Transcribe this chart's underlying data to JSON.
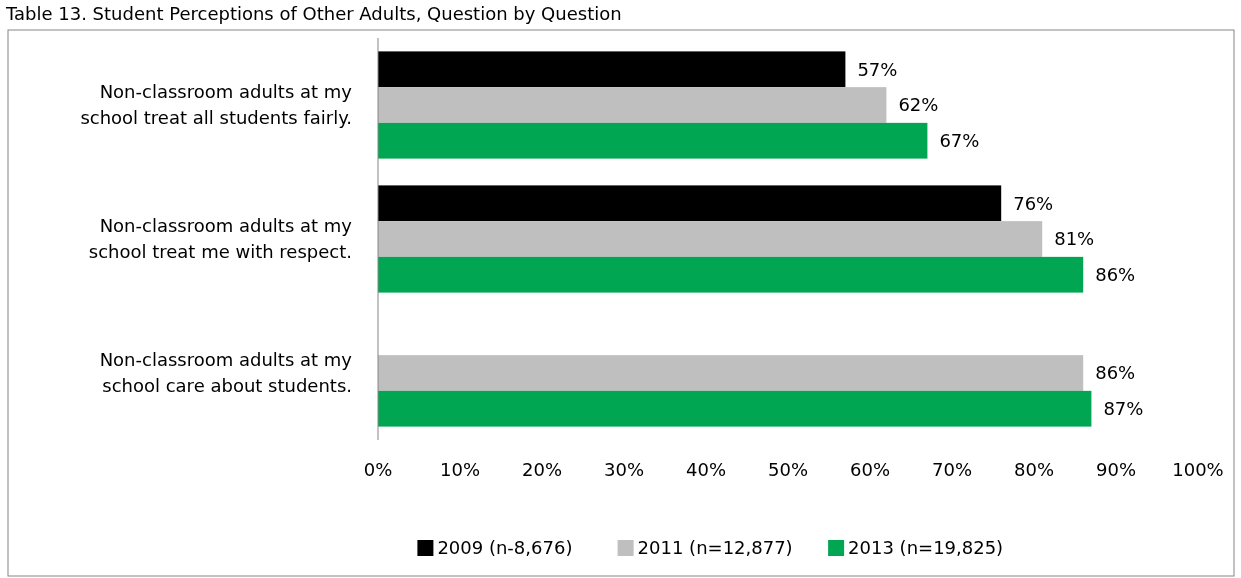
{
  "chart_data": {
    "type": "bar",
    "orientation": "horizontal",
    "title": "Table 13. Student Perceptions of Other Adults, Question by Question",
    "categories": [
      "Non-classroom adults at my school treat all students fairly.",
      "Non-classroom adults at my school treat me with respect.",
      "Non-classroom adults at my school care about students."
    ],
    "series": [
      {
        "name": "2009 (n-8,676)",
        "color": "#000000",
        "values": [
          57,
          76,
          null
        ],
        "value_labels": [
          "57%",
          "76%",
          null
        ]
      },
      {
        "name": "2011 (n=12,877)",
        "color": "#bfbfbf",
        "values": [
          62,
          81,
          86
        ],
        "value_labels": [
          "62%",
          "81%",
          "86%"
        ]
      },
      {
        "name": "2013 (n=19,825)",
        "color": "#00a651",
        "values": [
          67,
          86,
          87
        ],
        "value_labels": [
          "67%",
          "86%",
          "87%"
        ]
      }
    ],
    "xlim": [
      0,
      100
    ],
    "xticks": [
      {
        "value": 0,
        "label": "0%"
      },
      {
        "value": 10,
        "label": "10%"
      },
      {
        "value": 20,
        "label": "20%"
      },
      {
        "value": 30,
        "label": "30%"
      },
      {
        "value": 40,
        "label": "40%"
      },
      {
        "value": 50,
        "label": "50%"
      },
      {
        "value": 60,
        "label": "60%"
      },
      {
        "value": 70,
        "label": "70%"
      },
      {
        "value": 80,
        "label": "80%"
      },
      {
        "value": 90,
        "label": "90%"
      },
      {
        "value": 100,
        "label": "100%"
      }
    ],
    "grid": false,
    "legend": "bottom"
  }
}
